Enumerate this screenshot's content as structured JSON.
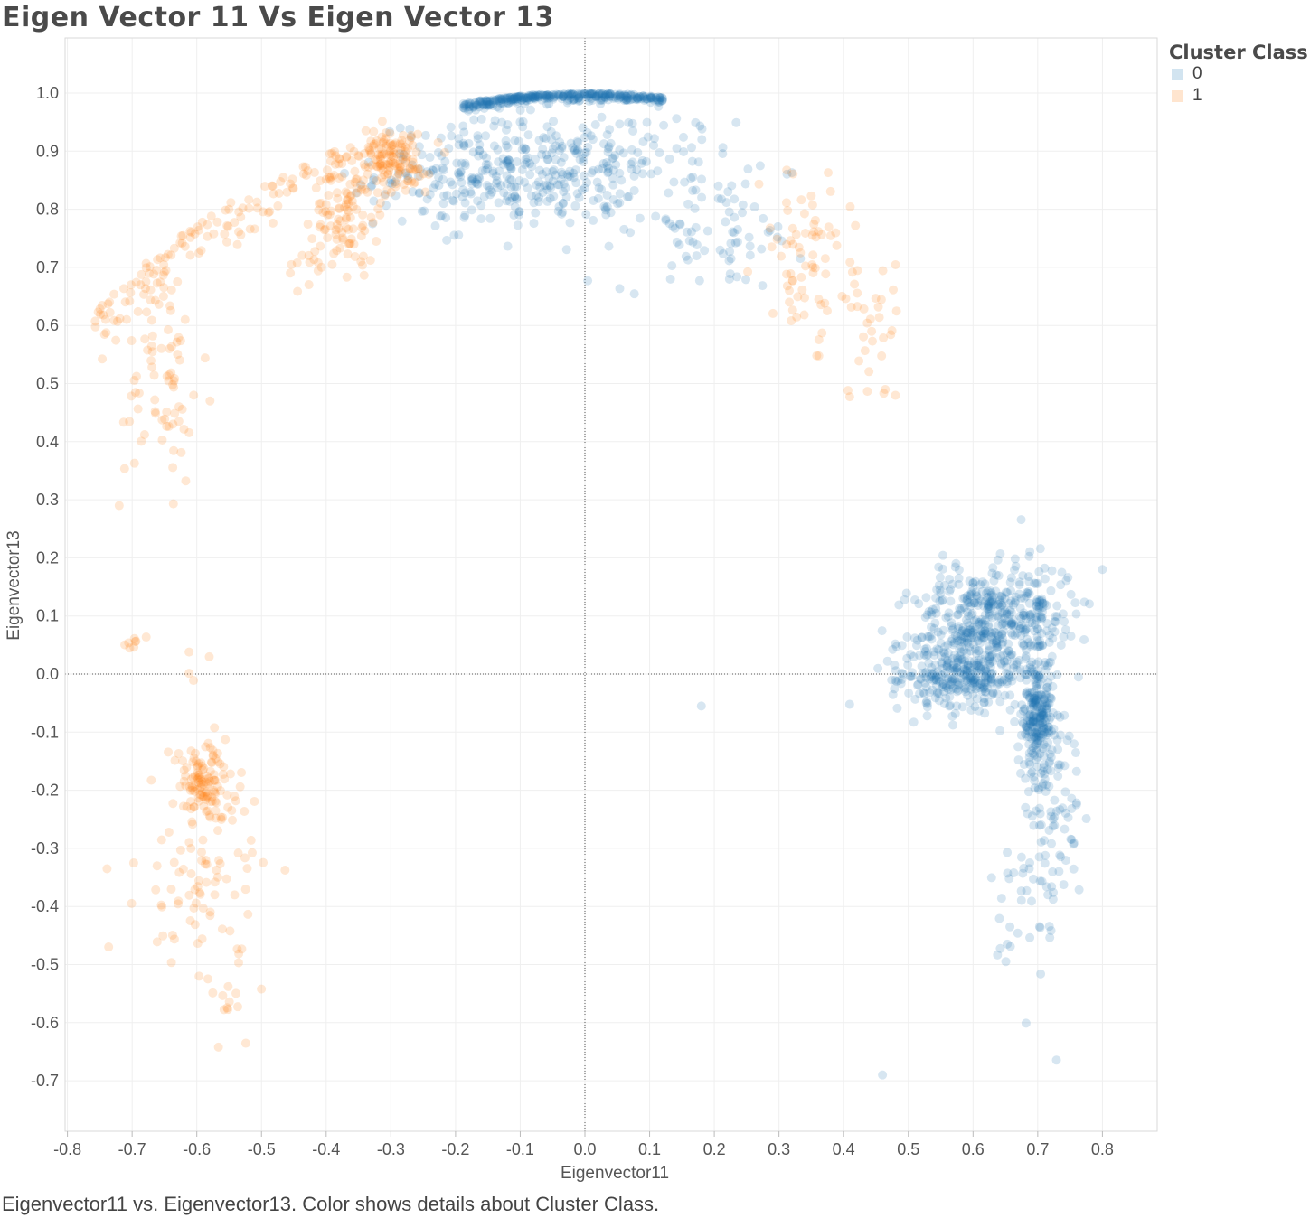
{
  "chart_data": {
    "type": "scatter",
    "title": "Eigen Vector 11 Vs Eigen Vector 13",
    "xlabel": "Eigenvector11",
    "ylabel": "Eigenvector13",
    "xlim": [
      -0.8,
      0.82
    ],
    "ylim": [
      -0.7,
      1.0
    ],
    "x_ticks": [
      "-0.8",
      "-0.7",
      "-0.6",
      "-0.5",
      "-0.4",
      "-0.3",
      "-0.2",
      "-0.1",
      "0.0",
      "0.1",
      "0.2",
      "0.3",
      "0.4",
      "0.5",
      "0.6",
      "0.7",
      "0.8"
    ],
    "y_ticks": [
      "1.0",
      "0.9",
      "0.8",
      "0.7",
      "0.6",
      "0.5",
      "0.4",
      "0.3",
      "0.2",
      "0.1",
      "0.0",
      "-0.1",
      "-0.2",
      "-0.3",
      "-0.4",
      "-0.5",
      "-0.6",
      "-0.7"
    ],
    "grid": true,
    "legend": {
      "title": "Cluster Class",
      "position": "top-right"
    },
    "series": [
      {
        "name": "0",
        "color": "#1f77b4",
        "clusters": [
          {
            "shape": "arc",
            "cx": 0.0,
            "cy": 0.0,
            "r": 1.0,
            "theta_min_deg": 83,
            "theta_max_deg": 101,
            "spread": 0.006,
            "count": 360
          },
          {
            "shape": "blob",
            "x": -0.12,
            "y": 0.86,
            "sx": 0.1,
            "sy": 0.045,
            "count": 320
          },
          {
            "shape": "blob",
            "x": 0.05,
            "y": 0.87,
            "sx": 0.09,
            "sy": 0.05,
            "count": 110
          },
          {
            "shape": "blob",
            "x": 0.2,
            "y": 0.76,
            "sx": 0.07,
            "sy": 0.05,
            "count": 70
          },
          {
            "shape": "blob",
            "x": 0.6,
            "y": 0.06,
            "sx": 0.045,
            "sy": 0.06,
            "count": 420
          },
          {
            "shape": "blob",
            "x": 0.57,
            "y": -0.01,
            "sx": 0.05,
            "sy": 0.02,
            "count": 160
          },
          {
            "shape": "blob",
            "x": 0.68,
            "y": 0.11,
            "sx": 0.04,
            "sy": 0.04,
            "count": 180
          },
          {
            "shape": "blob",
            "x": 0.7,
            "y": -0.07,
            "sx": 0.012,
            "sy": 0.05,
            "count": 240
          },
          {
            "shape": "blob",
            "x": 0.72,
            "y": -0.2,
            "sx": 0.025,
            "sy": 0.08,
            "count": 80
          },
          {
            "shape": "blob",
            "x": 0.69,
            "y": -0.4,
            "sx": 0.03,
            "sy": 0.1,
            "count": 45
          },
          {
            "shape": "point",
            "x": 0.46,
            "y": -0.69
          },
          {
            "shape": "point",
            "x": 0.18,
            "y": -0.055
          },
          {
            "shape": "point",
            "x": 0.8,
            "y": 0.18
          }
        ]
      },
      {
        "name": "1",
        "color": "#ff7f0e",
        "clusters": [
          {
            "shape": "arc",
            "cx": 0.0,
            "cy": 0.0,
            "r": 0.98,
            "theta_min_deg": 105,
            "theta_max_deg": 142,
            "spread": 0.03,
            "count": 160
          },
          {
            "shape": "blob",
            "x": -0.3,
            "y": 0.88,
            "sx": 0.03,
            "sy": 0.03,
            "count": 120
          },
          {
            "shape": "blob",
            "x": -0.37,
            "y": 0.79,
            "sx": 0.025,
            "sy": 0.04,
            "count": 90
          },
          {
            "shape": "blob",
            "x": -0.42,
            "y": 0.7,
            "sx": 0.02,
            "sy": 0.02,
            "count": 15
          },
          {
            "shape": "blob",
            "x": -0.65,
            "y": 0.5,
            "sx": 0.03,
            "sy": 0.09,
            "count": 70
          },
          {
            "shape": "blob",
            "x": -0.7,
            "y": 0.055,
            "sx": 0.006,
            "sy": 0.004,
            "count": 8
          },
          {
            "shape": "blob",
            "x": -0.6,
            "y": 0.02,
            "sx": 0.01,
            "sy": 0.04,
            "count": 4
          },
          {
            "shape": "blob",
            "x": -0.59,
            "y": -0.19,
            "sx": 0.025,
            "sy": 0.035,
            "count": 120
          },
          {
            "shape": "blob",
            "x": -0.6,
            "y": -0.35,
            "sx": 0.045,
            "sy": 0.07,
            "count": 75
          },
          {
            "shape": "blob",
            "x": -0.54,
            "y": -0.52,
            "sx": 0.025,
            "sy": 0.07,
            "count": 20
          },
          {
            "shape": "blob",
            "x": 0.34,
            "y": 0.72,
            "sx": 0.035,
            "sy": 0.07,
            "count": 70
          },
          {
            "shape": "blob",
            "x": 0.45,
            "y": 0.6,
            "sx": 0.04,
            "sy": 0.06,
            "count": 35
          },
          {
            "shape": "point",
            "x": -0.72,
            "y": 0.29
          }
        ]
      }
    ]
  },
  "caption": "Eigenvector11 vs. Eigenvector13.  Color shows details about Cluster Class."
}
